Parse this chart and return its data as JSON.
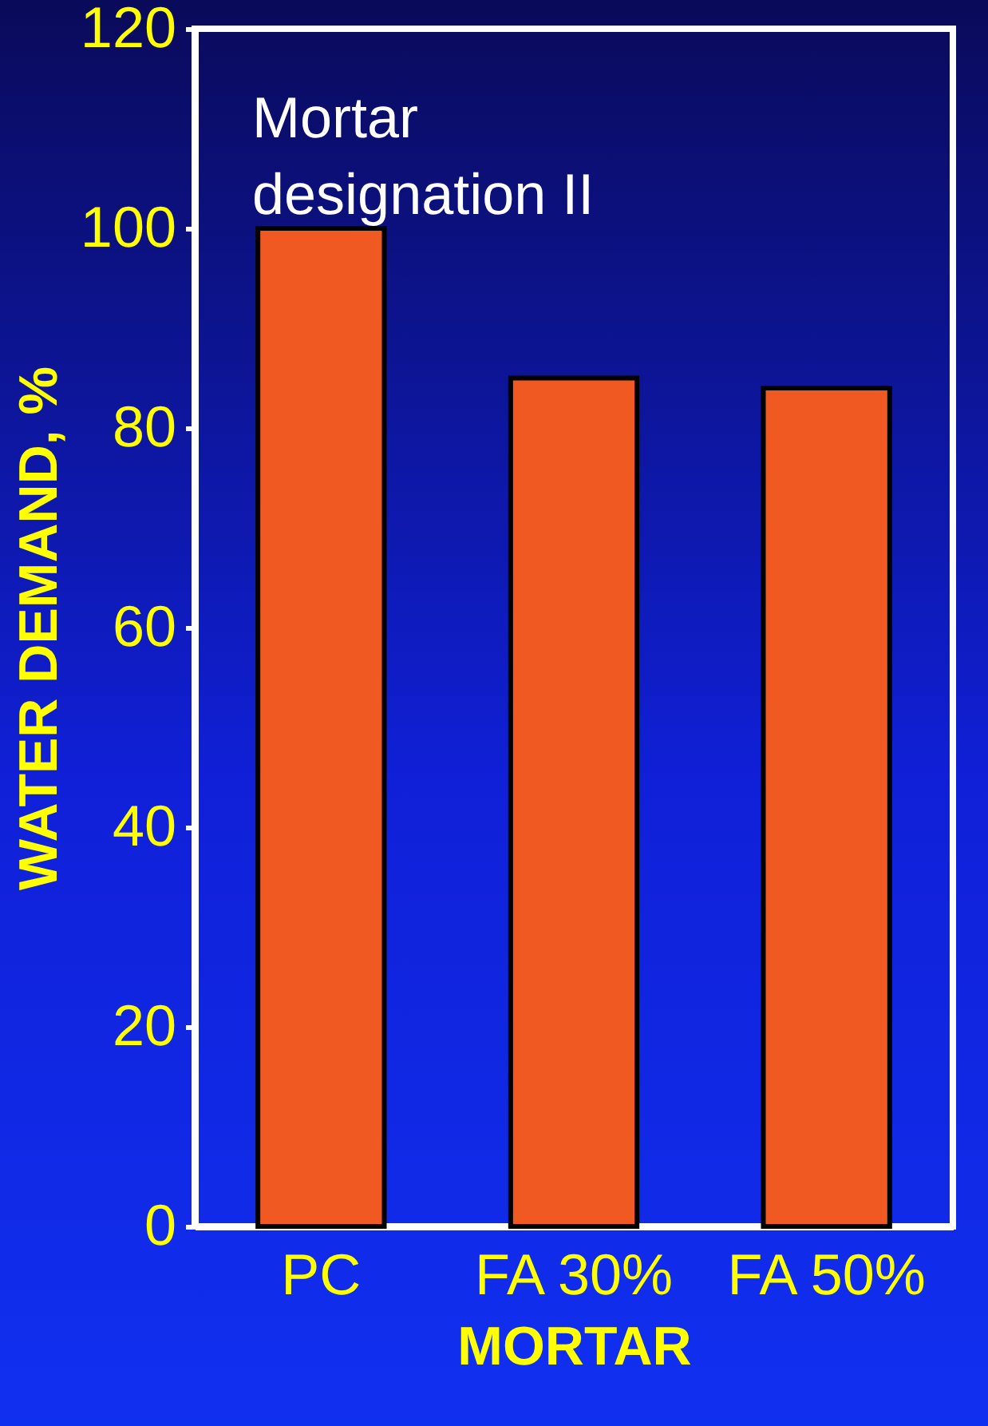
{
  "chart_data": {
    "type": "bar",
    "xlabel": "MORTAR",
    "ylabel": "WATER DEMAND, %",
    "categories": [
      "PC",
      "FA 30%",
      "FA 50%"
    ],
    "values": [
      100,
      85,
      84
    ],
    "color": "#f05a22",
    "ylim": [
      0,
      120
    ],
    "yticks": [
      0,
      20,
      40,
      60,
      80,
      100,
      120
    ],
    "grid": false,
    "annotations": [
      "Mortar designation II"
    ]
  }
}
